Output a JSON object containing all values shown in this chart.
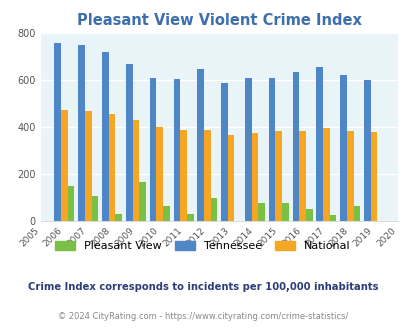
{
  "title": "Pleasant View Violent Crime Index",
  "years": [
    2005,
    2006,
    2007,
    2008,
    2009,
    2010,
    2011,
    2012,
    2013,
    2014,
    2015,
    2016,
    2017,
    2018,
    2019,
    2020
  ],
  "pleasant_view": [
    null,
    148,
    105,
    32,
    165,
    65,
    30,
    100,
    0,
    75,
    75,
    50,
    25,
    65,
    0,
    null
  ],
  "tennessee": [
    null,
    757,
    750,
    718,
    670,
    610,
    605,
    645,
    587,
    607,
    610,
    633,
    655,
    622,
    598,
    null
  ],
  "national": [
    null,
    474,
    467,
    455,
    428,
    402,
    387,
    387,
    367,
    375,
    383,
    383,
    398,
    383,
    380,
    null
  ],
  "bar_width": 0.28,
  "colors": {
    "pleasant_view": "#7bbf44",
    "tennessee": "#4f86c8",
    "national": "#f5a623"
  },
  "ylim": [
    0,
    800
  ],
  "yticks": [
    0,
    200,
    400,
    600,
    800
  ],
  "background_color": "#e8f4f8",
  "fig_background": "#ffffff",
  "title_color": "#3d6fad",
  "subtitle": "Crime Index corresponds to incidents per 100,000 inhabitants",
  "subtitle_color": "#2c3e7a",
  "footer": "© 2024 CityRating.com - https://www.cityrating.com/crime-statistics/",
  "footer_color": "#888888",
  "legend_labels": [
    "Pleasant View",
    "Tennessee",
    "National"
  ]
}
